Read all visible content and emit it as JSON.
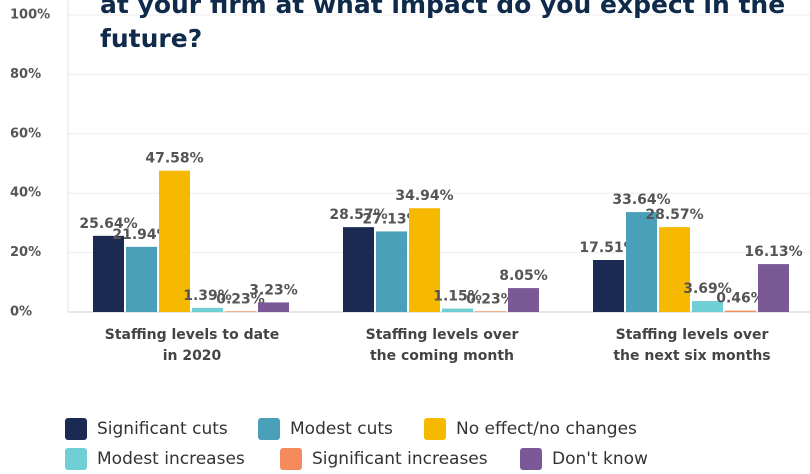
{
  "chart_data": {
    "type": "bar",
    "title": "at your firm at what impact do you expect in the future?",
    "categories": [
      "Staffing levels to date in 2020",
      "Staffing levels over the coming month",
      "Staffing levels over the next six months"
    ],
    "series": [
      {
        "name": "Significant cuts",
        "color": "#1b2a52",
        "values": [
          25.64,
          28.57,
          17.51
        ],
        "value_labels": [
          "25.64%",
          "28.57%",
          "17.51%"
        ]
      },
      {
        "name": "Modest cuts",
        "color": "#4aa0b8",
        "values": [
          21.94,
          27.13,
          33.64
        ],
        "value_labels": [
          "21.94%",
          "27.13%",
          "33.64%"
        ]
      },
      {
        "name": "No effect/no changes",
        "color": "#f7b900",
        "values": [
          47.58,
          34.94,
          28.57
        ],
        "value_labels": [
          "47.58%",
          "34.94%",
          "28.57%"
        ]
      },
      {
        "name": "Modest increases",
        "color": "#6fcfd4",
        "values": [
          1.39,
          1.15,
          3.69
        ],
        "value_labels": [
          "1.39%",
          "1.15%",
          "3.69%"
        ]
      },
      {
        "name": "Significant increases",
        "color": "#f58a5c",
        "values": [
          0.23,
          0.23,
          0.46
        ],
        "value_labels": [
          "0.23%",
          "0.23%",
          "0.46%"
        ]
      },
      {
        "name": "Don't know",
        "color": "#7b5896",
        "values": [
          3.23,
          8.05,
          16.13
        ],
        "value_labels": [
          "3.23%",
          "8.05%",
          "16.13%"
        ]
      }
    ],
    "ylim": [
      0,
      100
    ],
    "yticks": [
      {
        "value": 0,
        "label": "0%"
      },
      {
        "value": 20,
        "label": "20%"
      },
      {
        "value": 40,
        "label": "40%"
      },
      {
        "value": 60,
        "label": "60%"
      },
      {
        "value": 80,
        "label": "80%"
      },
      {
        "value": 100,
        "label": "100%"
      }
    ],
    "grid": true
  }
}
